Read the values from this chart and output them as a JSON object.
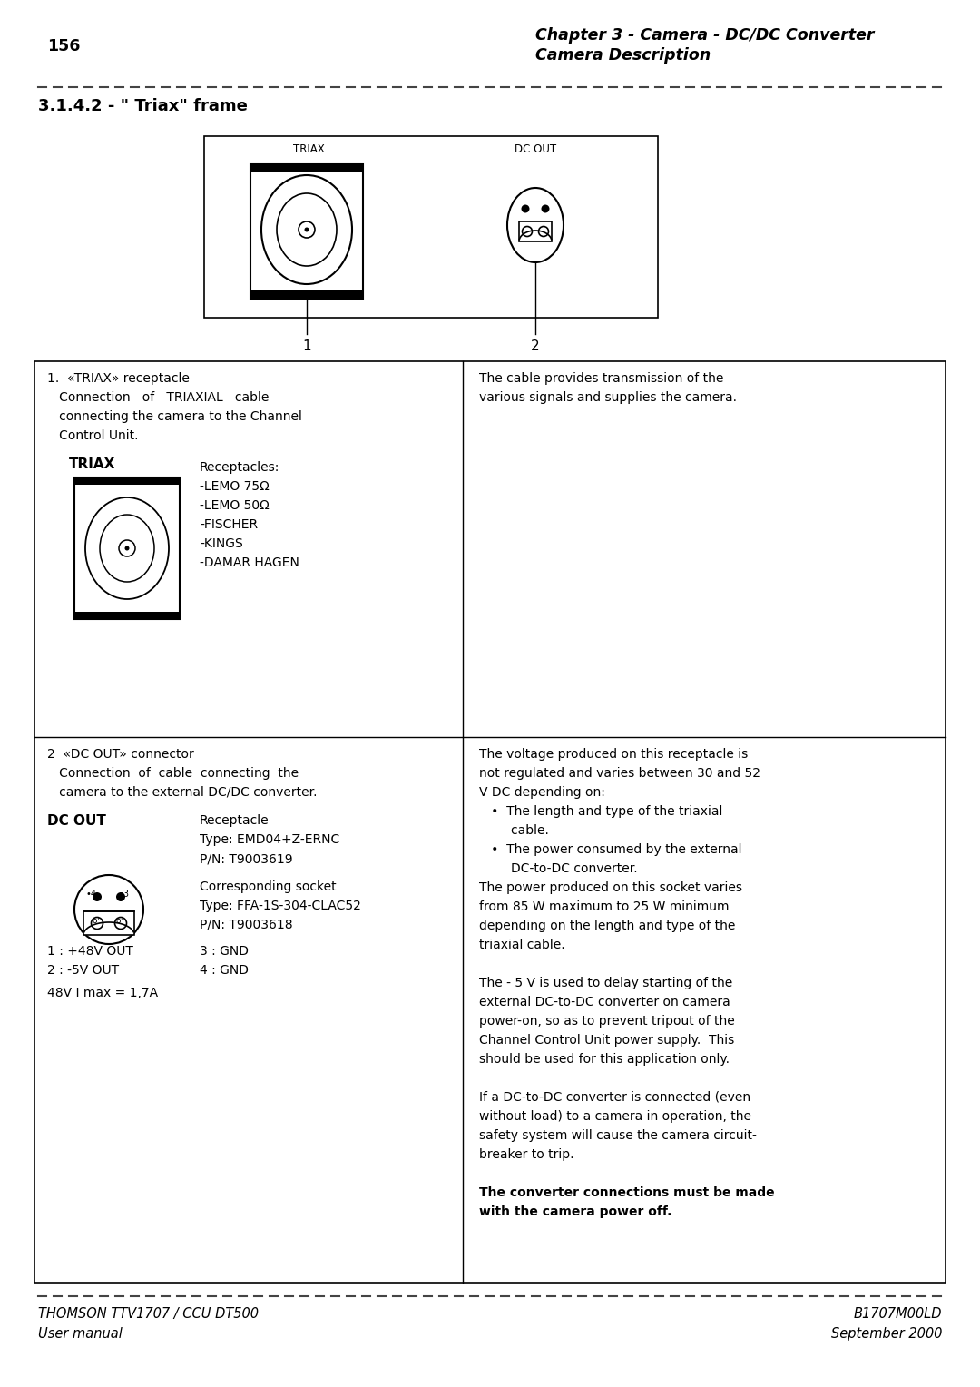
{
  "page_number": "156",
  "header_right_line1": "Chapter 3 - Camera - DC/DC Converter",
  "header_right_line2": "Camera Description",
  "section_title": "3.1.4.2 - \" Triax\" frame",
  "footer_left_line1": "THOMSON TTV1707 / CCU DT500",
  "footer_left_line2": "User manual",
  "footer_right_line1": "B1707M00LD",
  "footer_right_line2": "September 2000",
  "bg_color": "#ffffff",
  "text_color": "#000000",
  "label_triax": "TRIAX",
  "label_dc_out": "DC OUT",
  "label_1": "1",
  "label_2": "2",
  "cell1_line1": "1.  «TRIAX» receptacle",
  "cell1_line2": "   Connection   of   TRIAXIAL   cable",
  "cell1_line3": "   connecting the camera to the Channel",
  "cell1_line4": "   Control Unit.",
  "cell1_triax_label": "TRIAX",
  "cell1_receptacles_title": "Receptacles:",
  "cell1_receptacles": [
    "-LEMO 75Ω",
    "-LEMO 50Ω",
    "-FISCHER",
    "-KINGS",
    "-DAMAR HAGEN"
  ],
  "cell2_text1": "The cable provides transmission of the",
  "cell2_text2": "various signals and supplies the camera.",
  "cell3_line1": "2  «DC OUT» connector",
  "cell3_line2": "   Connection  of  cable  connecting  the",
  "cell3_line3": "   camera to the external DC/DC converter.",
  "cell3_dc_out_label": "DC OUT",
  "cell3_receptacle_label": "Receptacle",
  "cell3_type1": "Type: EMD04+Z-ERNC",
  "cell3_pn1": "P/N: T9003619",
  "cell3_socket_label": "Corresponding socket",
  "cell3_type2": "Type: FFA-1S-304-CLAC52",
  "cell3_pn2": "P/N: T9003618",
  "cell3_pins3": "48V I max = 1,7A",
  "cell4_text": [
    "The voltage produced on this receptacle is",
    "not regulated and varies between 30 and 52",
    "V DC depending on:",
    "   •  The length and type of the triaxial",
    "        cable.",
    "   •  The power consumed by the external",
    "        DC-to-DC converter.",
    "The power produced on this socket varies",
    "from 85 W maximum to 25 W minimum",
    "depending on the length and type of the",
    "triaxial cable.",
    "",
    "The - 5 V is used to delay starting of the",
    "external DC-to-DC converter on camera",
    "power-on, so as to prevent tripout of the",
    "Channel Control Unit power supply.  This",
    "should be used for this application only.",
    "",
    "If a DC-to-DC converter is connected (even",
    "without load) to a camera in operation, the",
    "safety system will cause the camera circuit-",
    "breaker to trip.",
    "",
    "The converter connections must be made",
    "with the camera power off."
  ]
}
